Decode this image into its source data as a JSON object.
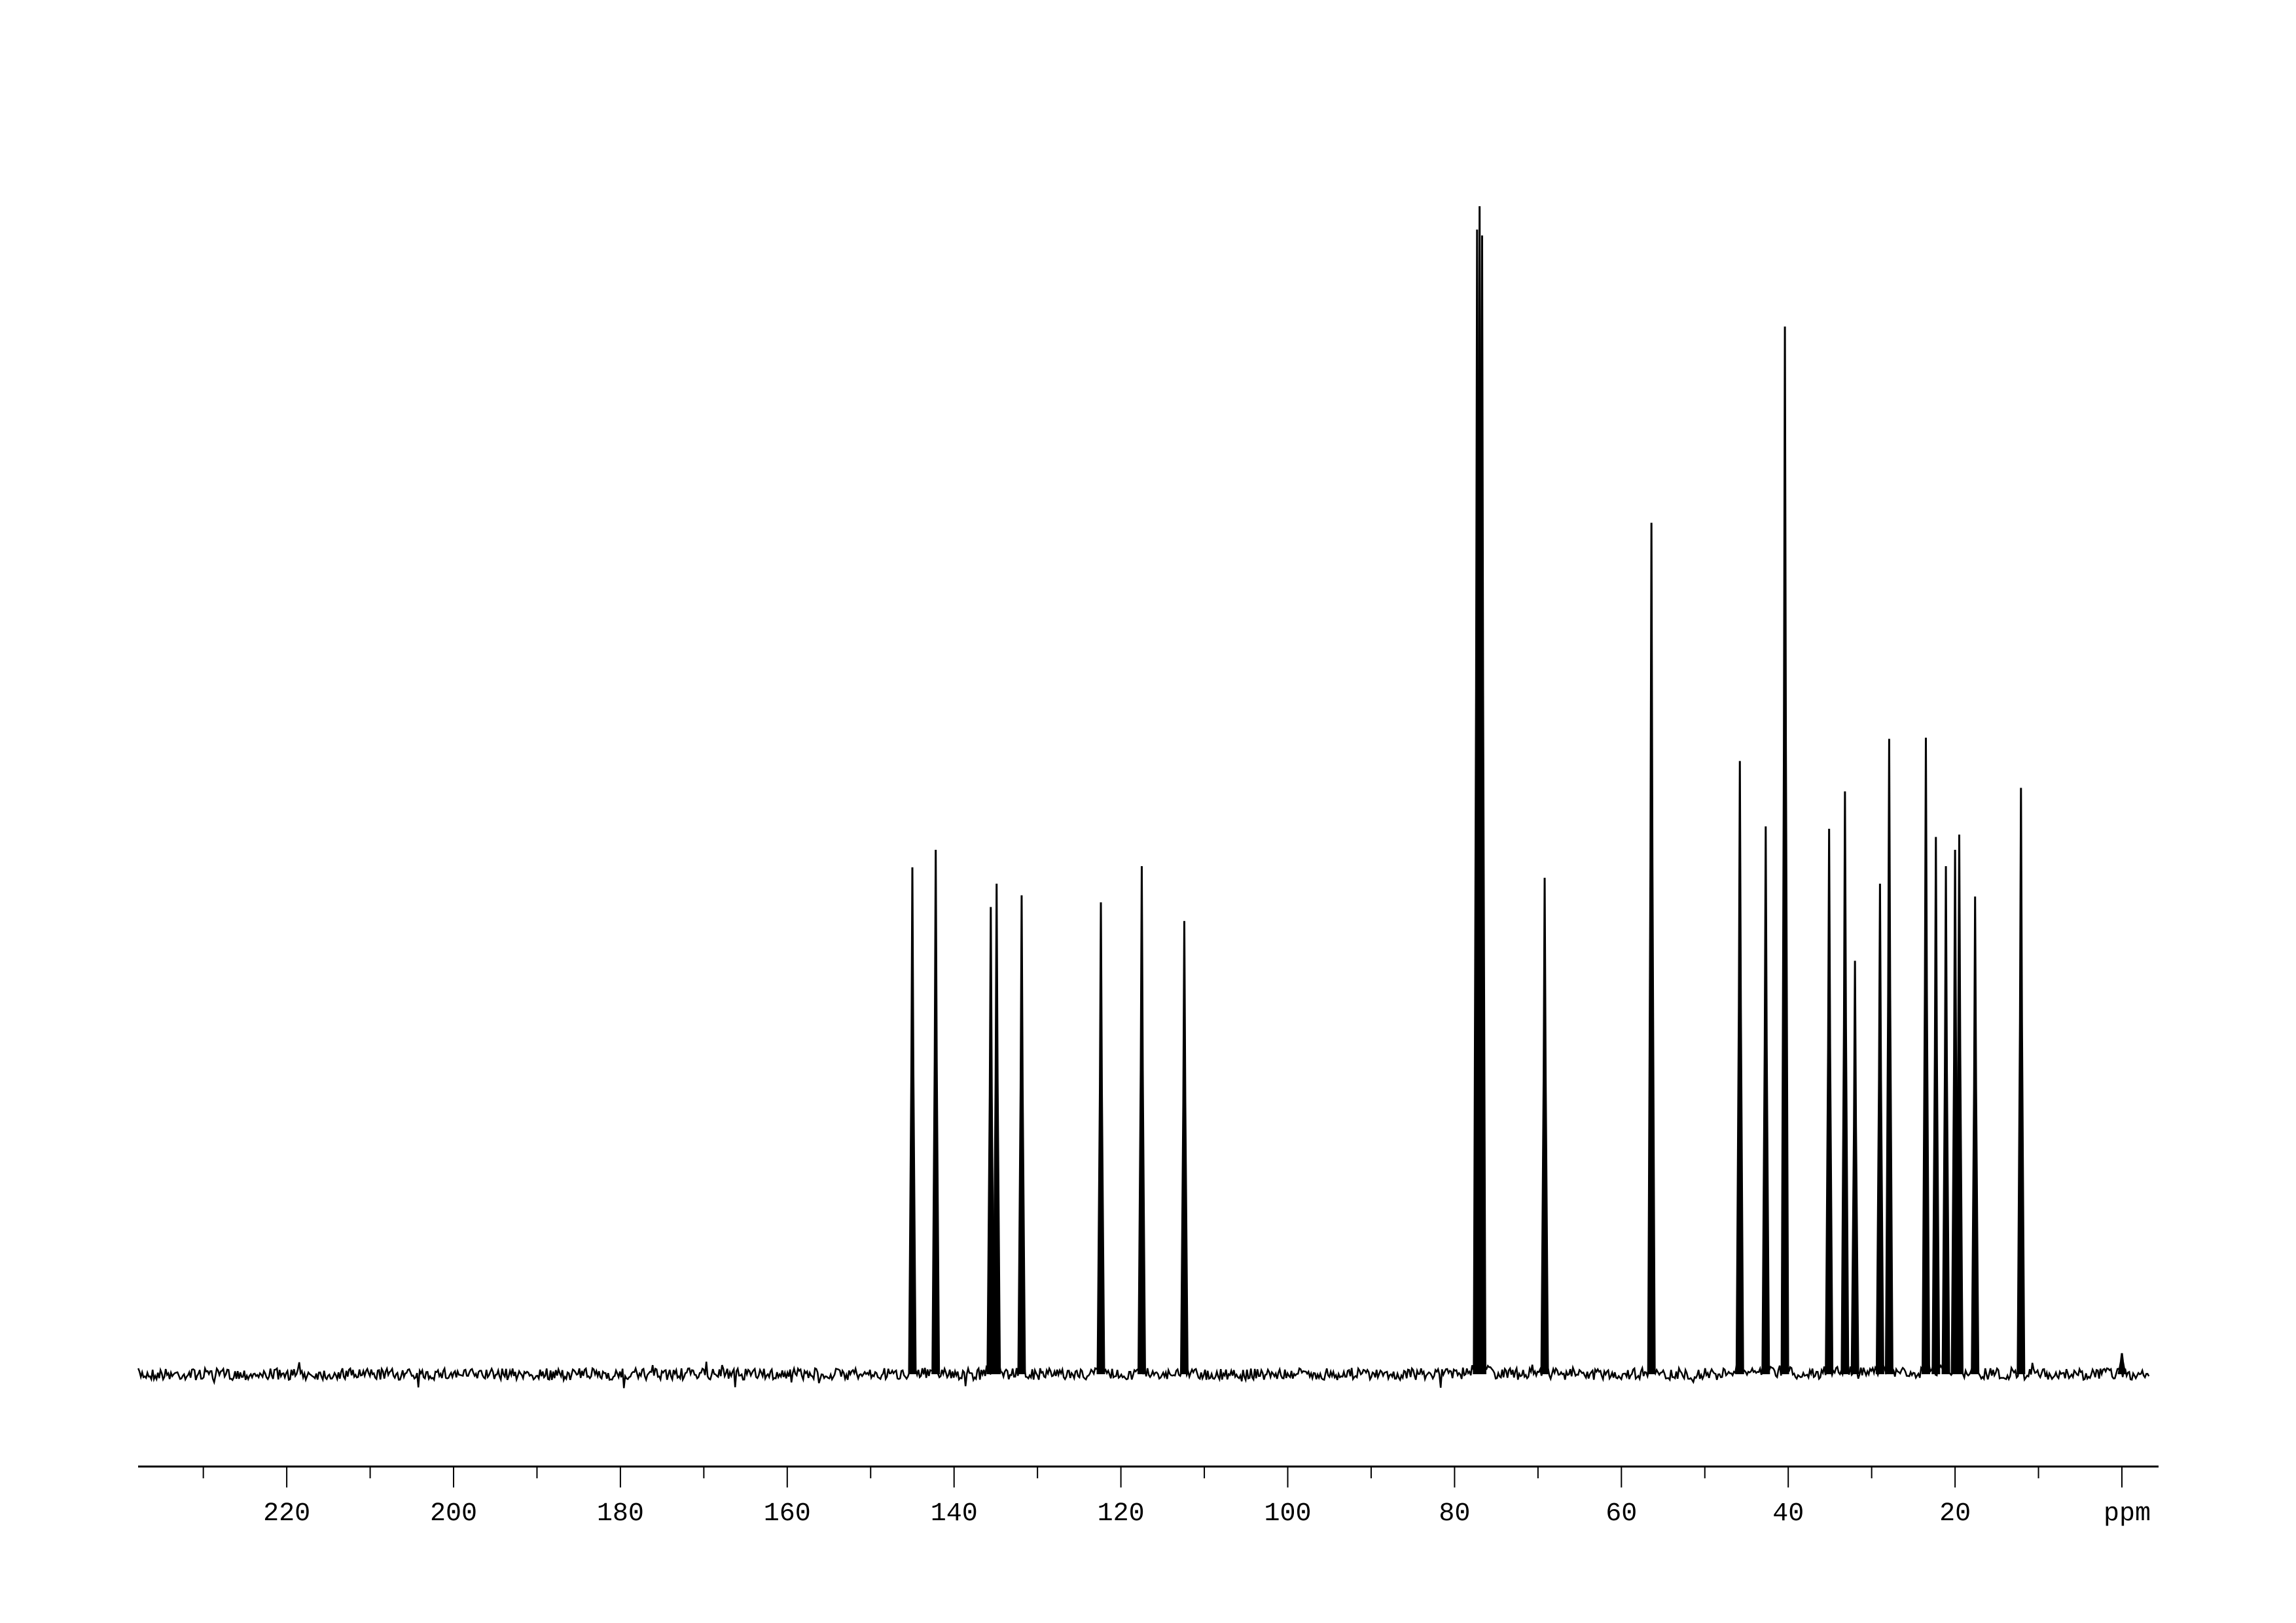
{
  "chart_data": {
    "type": "line",
    "title": "",
    "xlabel": "ppm",
    "ylabel": "",
    "xlim": [
      237.8,
      -3.3
    ],
    "x_reversed": true,
    "grid": false,
    "y_axis_shown": false,
    "x_ticks": [
      220,
      200,
      180,
      160,
      140,
      120,
      100,
      80,
      60,
      40,
      20
    ],
    "x_minor_tick_step": 10,
    "line_color": "#000000",
    "peaks": [
      {
        "ppm": 145.0,
        "relative_intensity": 43.4
      },
      {
        "ppm": 142.2,
        "relative_intensity": 44.9
      },
      {
        "ppm": 135.6,
        "relative_intensity": 40.0
      },
      {
        "ppm": 134.9,
        "relative_intensity": 42.0
      },
      {
        "ppm": 131.9,
        "relative_intensity": 41.0
      },
      {
        "ppm": 122.4,
        "relative_intensity": 40.4
      },
      {
        "ppm": 117.5,
        "relative_intensity": 43.5
      },
      {
        "ppm": 112.4,
        "relative_intensity": 38.8
      },
      {
        "ppm": 77.3,
        "relative_intensity": 98.0
      },
      {
        "ppm": 77.0,
        "relative_intensity": 100.0
      },
      {
        "ppm": 76.7,
        "relative_intensity": 97.5
      },
      {
        "ppm": 69.2,
        "relative_intensity": 42.5
      },
      {
        "ppm": 56.4,
        "relative_intensity": 72.9
      },
      {
        "ppm": 45.8,
        "relative_intensity": 52.5
      },
      {
        "ppm": 42.7,
        "relative_intensity": 46.9
      },
      {
        "ppm": 40.4,
        "relative_intensity": 89.7
      },
      {
        "ppm": 35.1,
        "relative_intensity": 46.7
      },
      {
        "ppm": 33.2,
        "relative_intensity": 49.9
      },
      {
        "ppm": 32.0,
        "relative_intensity": 35.4
      },
      {
        "ppm": 29.0,
        "relative_intensity": 42.0
      },
      {
        "ppm": 27.9,
        "relative_intensity": 54.4
      },
      {
        "ppm": 23.5,
        "relative_intensity": 54.5
      },
      {
        "ppm": 22.3,
        "relative_intensity": 46.0
      },
      {
        "ppm": 21.1,
        "relative_intensity": 43.5
      },
      {
        "ppm": 20.0,
        "relative_intensity": 44.9
      },
      {
        "ppm": 19.5,
        "relative_intensity": 46.2
      },
      {
        "ppm": 17.6,
        "relative_intensity": 40.9
      },
      {
        "ppm": 12.1,
        "relative_intensity": 50.2
      },
      {
        "ppm": 0.0,
        "relative_intensity": 1.8
      }
    ]
  }
}
